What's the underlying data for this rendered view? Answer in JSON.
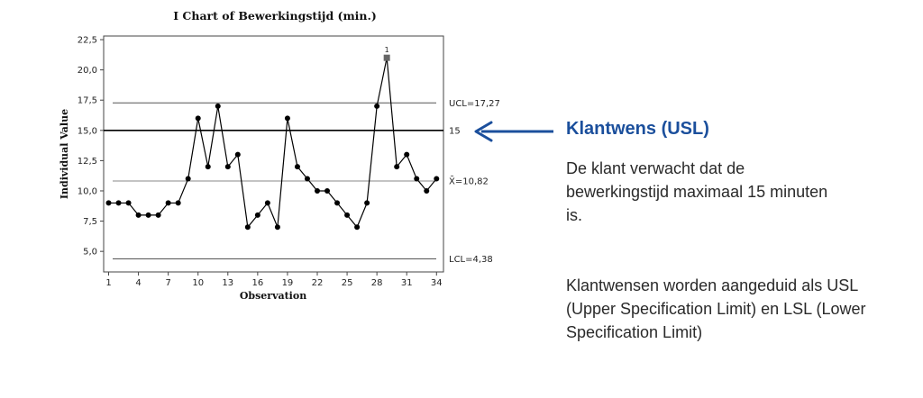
{
  "chart_data": {
    "type": "line",
    "title": "I Chart of Bewerkingstijd (min.)",
    "xlabel": "Observation",
    "ylabel": "Individual Value",
    "x": [
      1,
      2,
      3,
      4,
      5,
      6,
      7,
      8,
      9,
      10,
      11,
      12,
      13,
      14,
      15,
      16,
      17,
      18,
      19,
      20,
      21,
      22,
      23,
      24,
      25,
      26,
      27,
      28,
      29,
      30,
      31,
      32,
      33,
      34
    ],
    "values": [
      9,
      9,
      9,
      8,
      8,
      8,
      9,
      9,
      11,
      16,
      12,
      17,
      12,
      13,
      7,
      8,
      9,
      7,
      16,
      12,
      11,
      10,
      10,
      9,
      8,
      7,
      9,
      17,
      21,
      12,
      13,
      11,
      10,
      11
    ],
    "x_ticks": [
      1,
      4,
      7,
      10,
      13,
      16,
      19,
      22,
      25,
      28,
      31,
      34
    ],
    "y_ticks": [
      "5,0",
      "7,5",
      "10,0",
      "12,5",
      "15,0",
      "17,5",
      "20,0",
      "22,5"
    ],
    "y_tick_values": [
      5,
      7.5,
      10,
      12.5,
      15,
      17.5,
      20,
      22.5
    ],
    "ylim": [
      3.3,
      22.8
    ],
    "xlim": [
      0.5,
      34.7
    ],
    "grid": false,
    "reference_lines": [
      {
        "name": "UCL",
        "value": 17.27,
        "label": "UCL=17,27",
        "style": "control"
      },
      {
        "name": "USL",
        "value": 15,
        "label": "15",
        "style": "spec"
      },
      {
        "name": "mean",
        "value": 10.82,
        "label": "X̄=10,82",
        "style": "center"
      },
      {
        "name": "LCL",
        "value": 4.38,
        "label": "LCL=4,38",
        "style": "control"
      }
    ],
    "flagged_points": [
      {
        "x": 29,
        "value": 21,
        "label": "1"
      }
    ]
  },
  "callout": {
    "title": "Klantwens (USL)",
    "paragraph1": "De klant verwacht dat de bewerkingstijd maximaal 15 minuten is.",
    "paragraph2": "Klantwensen worden aangeduid als USL (Upper Specification Limit) en LSL (Lower Specification Limit)"
  },
  "colors": {
    "accent": "#1b4f9c",
    "series": "#000000",
    "flagged": "#666666",
    "control_line": "#555555"
  }
}
